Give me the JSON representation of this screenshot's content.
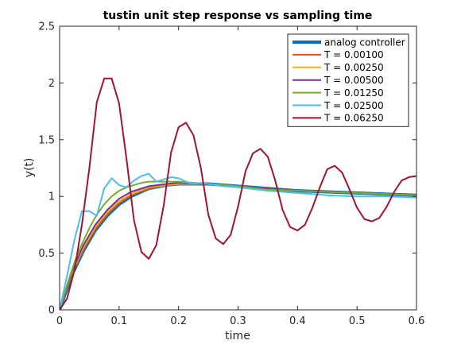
{
  "chart_data": {
    "type": "line",
    "title": "tustin unit step response vs sampling time",
    "xlabel": "time",
    "ylabel": "y(t)",
    "xlim": [
      0,
      0.6
    ],
    "ylim": [
      0,
      2.5
    ],
    "xticks": [
      0,
      0.1,
      0.2,
      0.3,
      0.4,
      0.5,
      0.6
    ],
    "xtick_labels": [
      "0",
      "0.1",
      "0.2",
      "0.3",
      "0.4",
      "0.5",
      "0.6"
    ],
    "yticks": [
      0,
      0.5,
      1,
      1.5,
      2,
      2.5
    ],
    "ytick_labels": [
      "0",
      "0.5",
      "1",
      "1.5",
      "2",
      "2.5"
    ],
    "grid": false,
    "legend_position": "top-right",
    "series": [
      {
        "name": "analog controller",
        "color": "#0072BD",
        "width": 4,
        "x": [
          0,
          0.02,
          0.04,
          0.06,
          0.08,
          0.1,
          0.12,
          0.15,
          0.18,
          0.2,
          0.25,
          0.3,
          0.35,
          0.4,
          0.45,
          0.5,
          0.55,
          0.6
        ],
        "y": [
          0,
          0.3,
          0.52,
          0.7,
          0.83,
          0.93,
          1.0,
          1.07,
          1.1,
          1.11,
          1.11,
          1.09,
          1.07,
          1.05,
          1.04,
          1.03,
          1.02,
          1.01
        ]
      },
      {
        "name": "T = 0.00100",
        "color": "#D95319",
        "width": 2,
        "x": [
          0,
          0.02,
          0.04,
          0.06,
          0.08,
          0.1,
          0.12,
          0.15,
          0.18,
          0.2,
          0.25,
          0.3,
          0.35,
          0.4,
          0.45,
          0.5,
          0.55,
          0.6
        ],
        "y": [
          0,
          0.31,
          0.53,
          0.71,
          0.84,
          0.94,
          1.01,
          1.07,
          1.1,
          1.11,
          1.11,
          1.09,
          1.07,
          1.05,
          1.04,
          1.03,
          1.02,
          1.01
        ]
      },
      {
        "name": "T = 0.00250",
        "color": "#EDB120",
        "width": 2,
        "x": [
          0,
          0.02,
          0.04,
          0.06,
          0.08,
          0.1,
          0.12,
          0.15,
          0.18,
          0.2,
          0.25,
          0.3,
          0.35,
          0.4,
          0.45,
          0.5,
          0.55,
          0.6
        ],
        "y": [
          0,
          0.32,
          0.55,
          0.73,
          0.86,
          0.96,
          1.02,
          1.08,
          1.1,
          1.11,
          1.11,
          1.09,
          1.07,
          1.05,
          1.04,
          1.03,
          1.02,
          1.01
        ]
      },
      {
        "name": "T = 0.00500",
        "color": "#7E2F8E",
        "width": 2,
        "x": [
          0,
          0.02,
          0.04,
          0.06,
          0.08,
          0.1,
          0.12,
          0.15,
          0.18,
          0.2,
          0.25,
          0.3,
          0.35,
          0.4,
          0.45,
          0.5,
          0.55,
          0.6
        ],
        "y": [
          0,
          0.33,
          0.57,
          0.75,
          0.88,
          0.98,
          1.04,
          1.09,
          1.11,
          1.12,
          1.11,
          1.09,
          1.07,
          1.05,
          1.04,
          1.03,
          1.02,
          1.01
        ]
      },
      {
        "name": "T = 0.01250",
        "color": "#77AC30",
        "width": 2,
        "x": [
          0,
          0.0125,
          0.025,
          0.0375,
          0.05,
          0.0625,
          0.075,
          0.0875,
          0.1,
          0.1125,
          0.125,
          0.1375,
          0.15,
          0.175,
          0.2,
          0.225,
          0.25,
          0.3,
          0.35,
          0.4,
          0.45,
          0.5,
          0.55,
          0.6
        ],
        "y": [
          0,
          0.22,
          0.42,
          0.58,
          0.72,
          0.84,
          0.93,
          1.0,
          1.05,
          1.08,
          1.1,
          1.12,
          1.13,
          1.13,
          1.13,
          1.12,
          1.11,
          1.09,
          1.06,
          1.05,
          1.04,
          1.03,
          1.02,
          1.01
        ]
      },
      {
        "name": "T = 0.02500",
        "color": "#4DBEEE",
        "width": 2,
        "x": [
          0,
          0.0125,
          0.025,
          0.0375,
          0.05,
          0.0625,
          0.075,
          0.0875,
          0.1,
          0.1125,
          0.125,
          0.1375,
          0.15,
          0.1625,
          0.175,
          0.1875,
          0.2,
          0.2125,
          0.225,
          0.2375,
          0.25,
          0.275,
          0.3,
          0.35,
          0.4,
          0.45,
          0.5,
          0.55,
          0.6
        ],
        "y": [
          0,
          0.3,
          0.62,
          0.87,
          0.87,
          0.83,
          1.07,
          1.16,
          1.1,
          1.08,
          1.14,
          1.18,
          1.2,
          1.13,
          1.15,
          1.17,
          1.16,
          1.13,
          1.11,
          1.12,
          1.11,
          1.09,
          1.08,
          1.05,
          1.03,
          1.01,
          1.0,
          1.0,
          0.99
        ]
      },
      {
        "name": "T = 0.06250",
        "color": "#A2142F",
        "width": 2,
        "x": [
          0,
          0.0125,
          0.025,
          0.0375,
          0.05,
          0.0625,
          0.075,
          0.0875,
          0.1,
          0.1125,
          0.125,
          0.1375,
          0.15,
          0.1625,
          0.175,
          0.1875,
          0.2,
          0.2125,
          0.225,
          0.2375,
          0.25,
          0.2625,
          0.275,
          0.2875,
          0.3,
          0.3125,
          0.325,
          0.3375,
          0.35,
          0.3625,
          0.375,
          0.3875,
          0.4,
          0.4125,
          0.425,
          0.4375,
          0.45,
          0.4625,
          0.475,
          0.4875,
          0.5,
          0.5125,
          0.525,
          0.5375,
          0.55,
          0.5625,
          0.575,
          0.5875,
          0.6
        ],
        "y": [
          0,
          0.1,
          0.35,
          0.75,
          1.25,
          1.83,
          2.04,
          2.04,
          1.82,
          1.33,
          0.79,
          0.51,
          0.45,
          0.57,
          0.92,
          1.39,
          1.61,
          1.65,
          1.54,
          1.25,
          0.84,
          0.63,
          0.58,
          0.66,
          0.91,
          1.22,
          1.38,
          1.42,
          1.35,
          1.14,
          0.88,
          0.73,
          0.7,
          0.75,
          0.9,
          1.08,
          1.24,
          1.27,
          1.21,
          1.06,
          0.9,
          0.8,
          0.78,
          0.81,
          0.91,
          1.04,
          1.14,
          1.17,
          1.18
        ]
      }
    ]
  }
}
